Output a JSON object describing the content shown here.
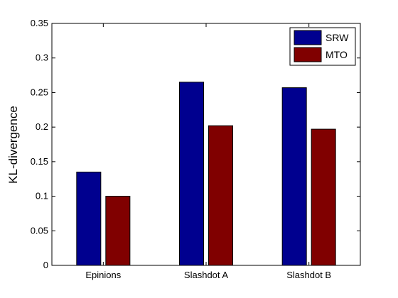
{
  "chart_data": {
    "type": "bar",
    "categories": [
      "Epinions",
      "Slashdot A",
      "Slashdot B"
    ],
    "series": [
      {
        "name": "SRW",
        "values": [
          0.135,
          0.265,
          0.257
        ],
        "color": "#00008f"
      },
      {
        "name": "MTO",
        "values": [
          0.1,
          0.202,
          0.197
        ],
        "color": "#800000"
      }
    ],
    "title": "",
    "xlabel": "",
    "ylabel": "KL-divergence",
    "ylim": [
      0,
      0.35
    ],
    "yticks": [
      "0",
      "0.05",
      "0.1",
      "0.15",
      "0.2",
      "0.25",
      "0.3",
      "0.35"
    ],
    "grid": false,
    "legend_position": "top-right"
  }
}
